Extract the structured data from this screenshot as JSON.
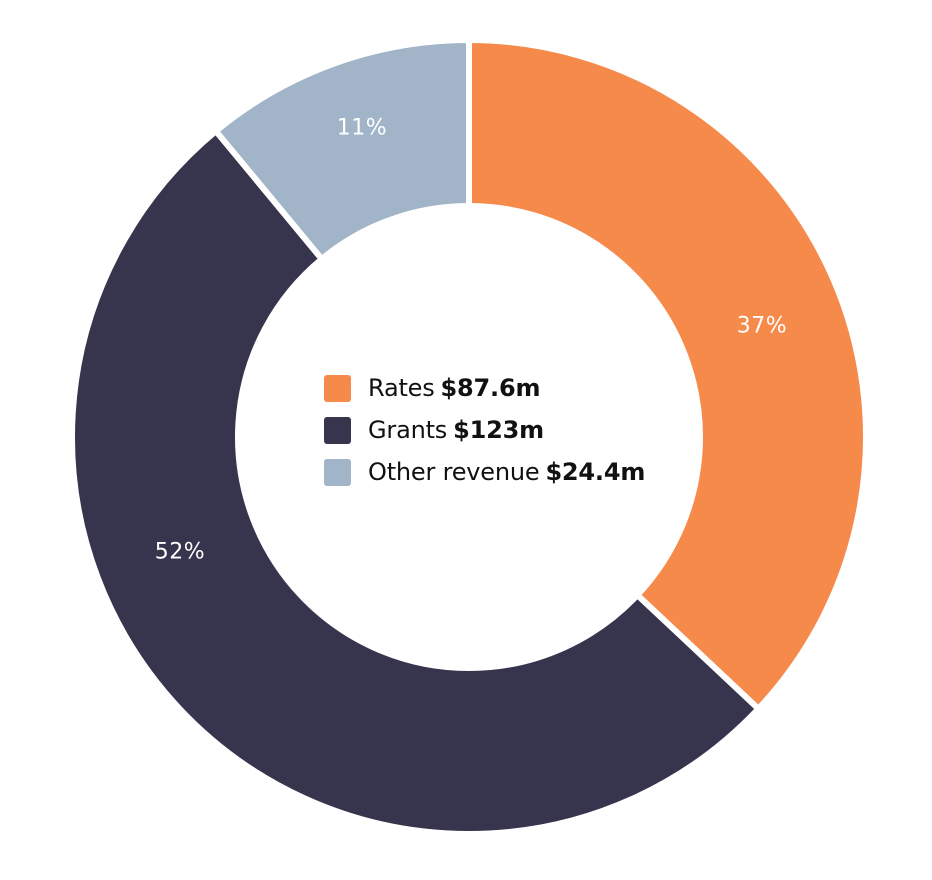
{
  "chart_data": {
    "type": "pie",
    "variant": "donut",
    "title": "",
    "categories": [
      "Rates",
      "Grants",
      "Other revenue"
    ],
    "values": [
      87.6,
      123,
      24.4
    ],
    "value_labels": [
      "$87.6m",
      "$123m",
      "$24.4m"
    ],
    "percentages": [
      37,
      52,
      11
    ],
    "percentage_labels": [
      "37%",
      "52%",
      "11%"
    ],
    "colors": [
      "#F58A4B",
      "#37344E",
      "#A2B4C8"
    ],
    "start_angle_deg": 0,
    "direction": "clockwise",
    "legend_position": "center"
  },
  "legend": {
    "items": [
      {
        "name": "Rates",
        "value": "$87.6m",
        "color": "#F58A4B"
      },
      {
        "name": "Grants",
        "value": "$123m",
        "color": "#37344E"
      },
      {
        "name": "Other revenue",
        "value": "$24.4m",
        "color": "#A2B4C8"
      }
    ]
  },
  "labels": {
    "rates_pct": "37%",
    "grants_pct": "52%",
    "other_pct": "11%"
  }
}
